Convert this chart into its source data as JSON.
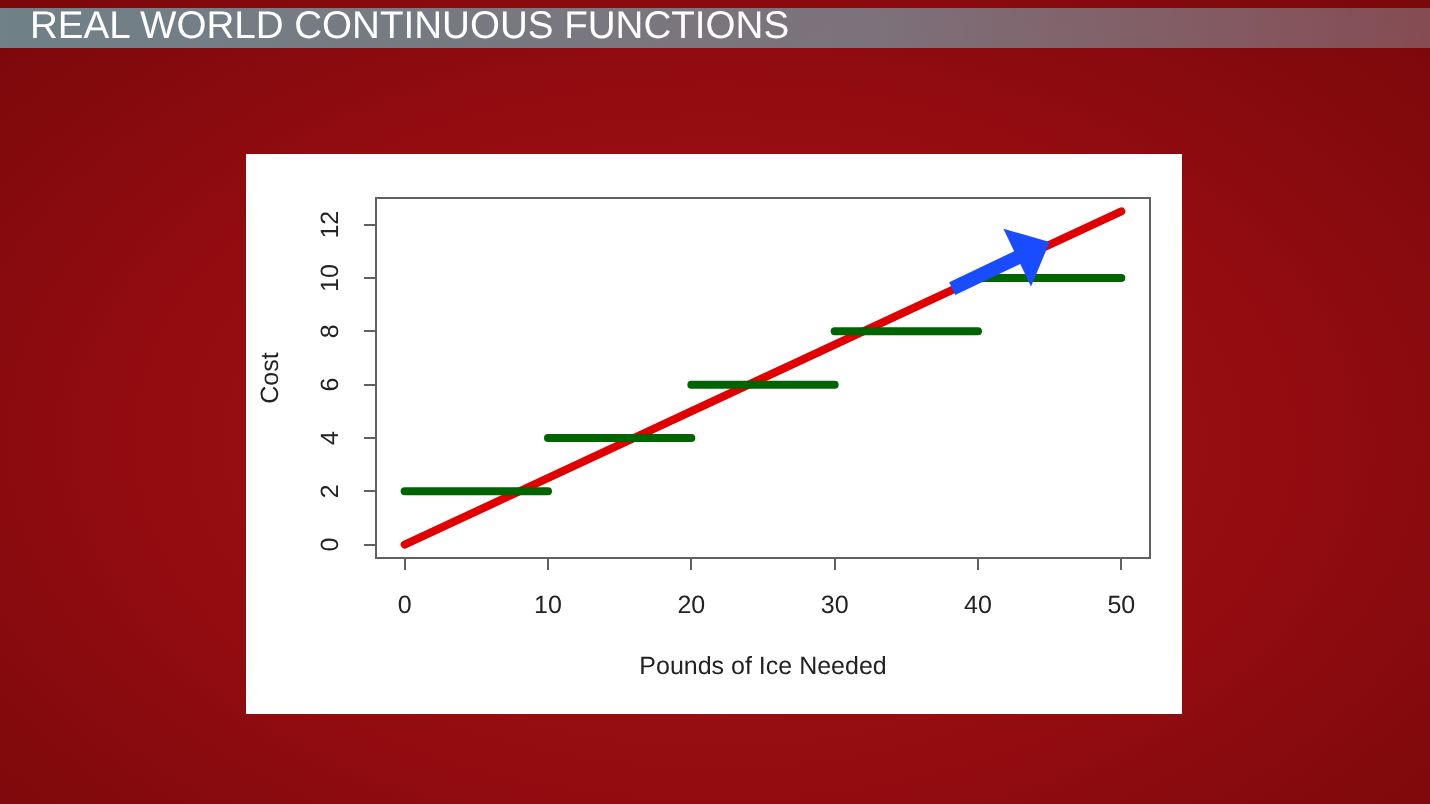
{
  "chart_data": {
    "type": "line",
    "title": "REAL WORLD CONTINUOUS FUNCTIONS",
    "xlabel": "Pounds of Ice Needed",
    "ylabel": "Cost",
    "series": [
      {
        "color": "#e00000",
        "x": [
          0,
          50
        ],
        "values": [
          0,
          12.5
        ]
      },
      {
        "color": "#006400",
        "x": [
          0,
          10
        ],
        "values": [
          2,
          2
        ]
      },
      {
        "color": "#006400",
        "x": [
          10,
          20
        ],
        "values": [
          4,
          4
        ]
      },
      {
        "color": "#006400",
        "x": [
          20,
          30
        ],
        "values": [
          6,
          6
        ]
      },
      {
        "color": "#006400",
        "x": [
          30,
          40
        ],
        "values": [
          8,
          8
        ]
      },
      {
        "color": "#006400",
        "x": [
          40,
          50
        ],
        "values": [
          10,
          10
        ]
      }
    ],
    "xlim": [
      -2,
      52
    ],
    "xticks": [
      0,
      10,
      20,
      30,
      40,
      50
    ],
    "ylim": [
      -0.5,
      13
    ],
    "yticks": [
      0,
      2,
      4,
      6,
      8,
      10,
      12
    ]
  }
}
